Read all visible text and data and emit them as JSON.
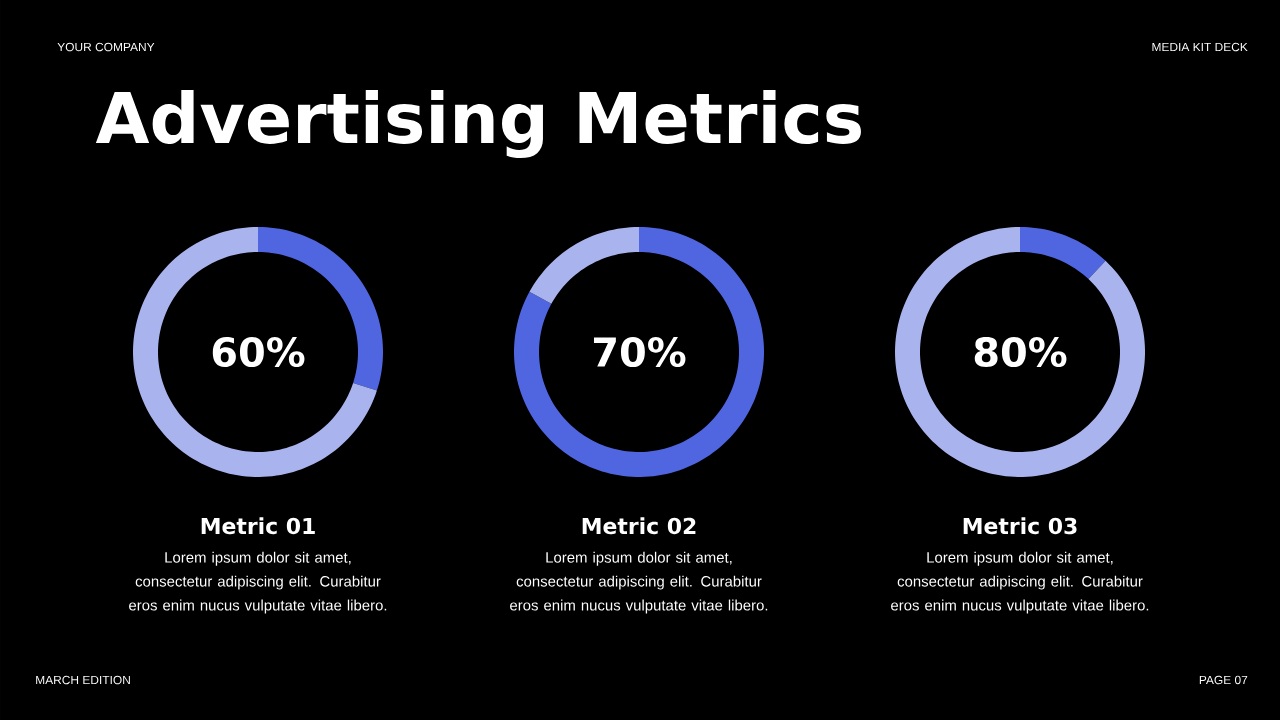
{
  "chart_data": [
    {
      "type": "other",
      "title": "Advertising Metrics",
      "annotations": [
        "YOUR COMPANY",
        "MEDIA KIT DECK",
        "MARCH EDITION",
        "PAGE 07"
      ]
    },
    {
      "type": "donut",
      "title": "Metric 01",
      "categories": [
        null,
        null
      ],
      "values": [
        30,
        70
      ],
      "colors": [
        "#5066e0",
        "#a9b4ee"
      ],
      "annotations": [
        "60%",
        "Lorem ipsum dolor sit amet, consectetur adipiscing elit. Curabitur eros enim nucus vulputate vitae libero."
      ]
    },
    {
      "type": "donut",
      "title": "Metric 02",
      "categories": [
        null,
        null
      ],
      "values": [
        83,
        17
      ],
      "colors": [
        "#5066e0",
        "#a9b4ee"
      ],
      "annotations": [
        "70%",
        "Lorem ipsum dolor sit amet, consectetur adipiscing elit. Curabitur eros enim nucus vulputate vitae libero."
      ]
    },
    {
      "type": "donut",
      "title": "Metric 03",
      "categories": [
        null,
        null
      ],
      "values": [
        12,
        88
      ],
      "colors": [
        "#5066e0",
        "#a9b4ee"
      ],
      "annotations": [
        "80%",
        "Lorem ipsum dolor sit amet, consectetur adipiscing elit. Curabitur eros enim nucus vulputate vitae libero."
      ]
    }
  ]
}
